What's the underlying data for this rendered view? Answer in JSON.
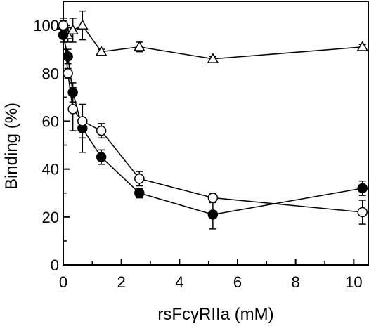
{
  "chart_data": {
    "type": "scatter",
    "title": "",
    "xlabel": "rsFcγRIIa (mM)",
    "ylabel": "Binding (%)",
    "xlim": [
      0,
      10.5
    ],
    "ylim": [
      0,
      110
    ],
    "xticks": [
      0,
      2,
      4,
      6,
      8,
      10
    ],
    "yticks": [
      0,
      20,
      40,
      60,
      80,
      100
    ],
    "grid": false,
    "legend": "none",
    "series": [
      {
        "marker": "triangle-open",
        "x": [
          0,
          0.16,
          0.33,
          0.66,
          1.31,
          2.62,
          5.15,
          10.3
        ],
        "y": [
          100,
          96,
          98,
          100,
          89,
          91,
          86,
          91
        ],
        "err": [
          3,
          3,
          5,
          6,
          1,
          2,
          1,
          1
        ]
      },
      {
        "marker": "circle-filled",
        "x": [
          0,
          0.16,
          0.33,
          0.66,
          1.31,
          2.62,
          5.15,
          10.3
        ],
        "y": [
          96,
          87,
          72,
          57,
          45,
          30,
          21,
          32
        ],
        "err": [
          3,
          3,
          4,
          10,
          3,
          2,
          6,
          3
        ]
      },
      {
        "marker": "circle-open",
        "x": [
          0,
          0.16,
          0.33,
          0.66,
          1.31,
          2.62,
          5.15,
          10.3
        ],
        "y": [
          100,
          80,
          65,
          60,
          56,
          36,
          28,
          22
        ],
        "err": [
          2,
          2,
          9,
          7,
          3,
          3,
          2,
          5
        ]
      }
    ]
  }
}
